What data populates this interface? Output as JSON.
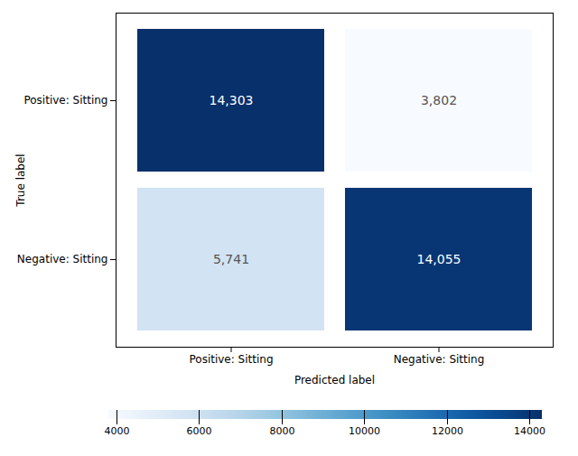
{
  "chart_data": {
    "type": "heatmap",
    "x_categories": [
      "Positive: Sitting",
      "Negative: Sitting"
    ],
    "y_categories": [
      "Positive: Sitting",
      "Negative: Sitting"
    ],
    "xlabel": "Predicted label",
    "ylabel": "True label",
    "values": [
      [
        14303,
        3802
      ],
      [
        5741,
        14055
      ]
    ],
    "value_labels": [
      [
        "14,303",
        "3,802"
      ],
      [
        "5,741",
        "14,055"
      ]
    ],
    "data_labels": true,
    "colorbar_lim": [
      3802,
      14303
    ],
    "colorbar_ticks": [
      4000,
      6000,
      8000,
      10000,
      12000,
      14000
    ]
  }
}
